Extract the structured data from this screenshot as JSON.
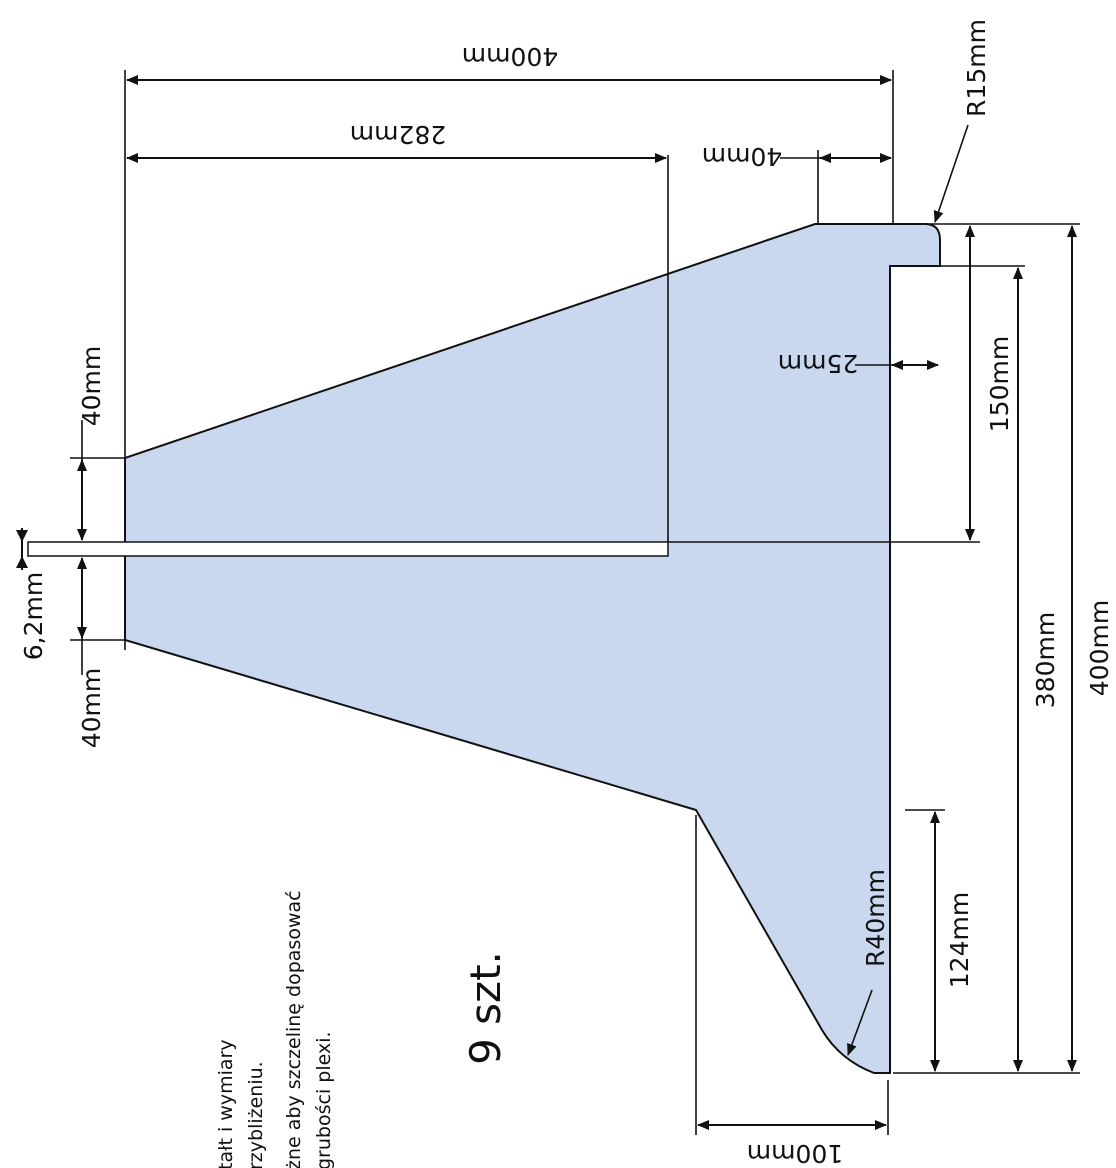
{
  "dimensions": {
    "width_400_top": "400mm",
    "width_282": "282mm",
    "width_40_top": "40mm",
    "radius_r15": "R15mm",
    "height_150": "150mm",
    "depth_25": "25mm",
    "height_380": "380mm",
    "height_400_right": "400mm",
    "height_124": "124mm",
    "radius_r40": "R40mm",
    "width_100": "100mm",
    "gap_40_upper": "40mm",
    "slot_6_2": "6,2mm",
    "gap_40_lower": "40mm"
  },
  "quantity": "9 szt.",
  "notes": [
    "tałt i wymiary",
    "rzybliżeniu.",
    "żne aby szczelinę dopasować",
    "grubości plexi."
  ],
  "colors": {
    "shape_fill": "#c9d8ee",
    "line": "#111111"
  }
}
